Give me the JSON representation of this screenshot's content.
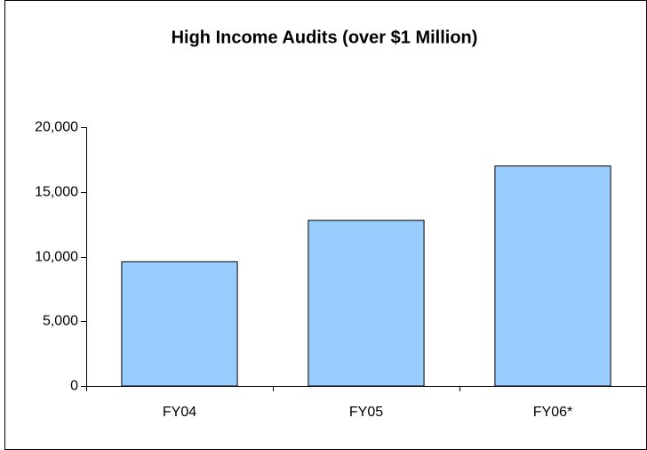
{
  "chart_data": {
    "type": "bar",
    "title": "High Income Audits (over $1 Million)",
    "categories": [
      "FY04",
      "FY05",
      "FY06*"
    ],
    "values": [
      9600,
      12800,
      17000
    ],
    "color": "#99ccff",
    "ylim": [
      0,
      20000
    ],
    "yticks": [
      0,
      {
        "value": 5000,
        "label": "5,000"
      },
      {
        "value": 10000,
        "label": "10,000"
      },
      {
        "value": 15000,
        "label": "15,000"
      },
      {
        "value": 20000,
        "label": "20,000"
      }
    ],
    "grid": false
  }
}
